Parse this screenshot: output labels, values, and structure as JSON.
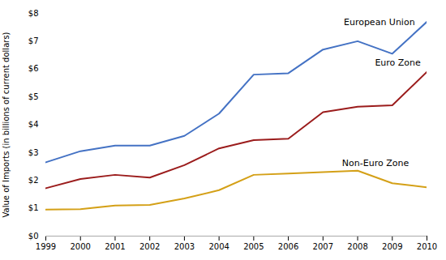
{
  "chart_data": {
    "type": "line",
    "x": [
      1999,
      2000,
      2001,
      2002,
      2003,
      2004,
      2005,
      2006,
      2007,
      2008,
      2009,
      2010
    ],
    "series": [
      {
        "name": "European Union",
        "color": "#4472C4",
        "values": [
          2.65,
          3.05,
          3.25,
          3.25,
          3.6,
          4.4,
          5.8,
          5.85,
          6.7,
          7.0,
          6.55,
          7.7
        ]
      },
      {
        "name": "Euro Zone",
        "color": "#9B1C1C",
        "values": [
          1.72,
          2.05,
          2.2,
          2.1,
          2.55,
          3.15,
          3.45,
          3.5,
          4.45,
          4.65,
          4.7,
          5.9
        ]
      },
      {
        "name": "Non-Euro Zone",
        "color": "#D4A017",
        "values": [
          0.95,
          0.97,
          1.1,
          1.12,
          1.35,
          1.65,
          2.2,
          2.25,
          2.3,
          2.35,
          1.9,
          1.75
        ]
      }
    ],
    "ylabel": "Value of Imports (in billions of current dollars)",
    "xlim": [
      1999,
      2010
    ],
    "xticks": [
      1999,
      2000,
      2001,
      2002,
      2003,
      2004,
      2005,
      2006,
      2007,
      2008,
      2009,
      2010
    ],
    "ylim": [
      0,
      8
    ],
    "yticks": [
      {
        "value": 0,
        "label": "$0"
      },
      {
        "value": 1,
        "label": "$1"
      },
      {
        "value": 2,
        "label": "$2"
      },
      {
        "value": 3,
        "label": "$3"
      },
      {
        "value": 4,
        "label": "$4"
      },
      {
        "value": 5,
        "label": "$5"
      },
      {
        "value": 6,
        "label": "$6"
      },
      {
        "value": 7,
        "label": "$7"
      },
      {
        "value": 8,
        "label": "$8"
      }
    ],
    "annotations": [
      {
        "text": "European Union",
        "x": 2007.6,
        "y": 7.82
      },
      {
        "text": "Euro Zone",
        "x": 2008.5,
        "y": 6.35
      },
      {
        "text": "Non-Euro Zone",
        "x": 2007.55,
        "y": 2.73
      }
    ],
    "grid": false
  }
}
